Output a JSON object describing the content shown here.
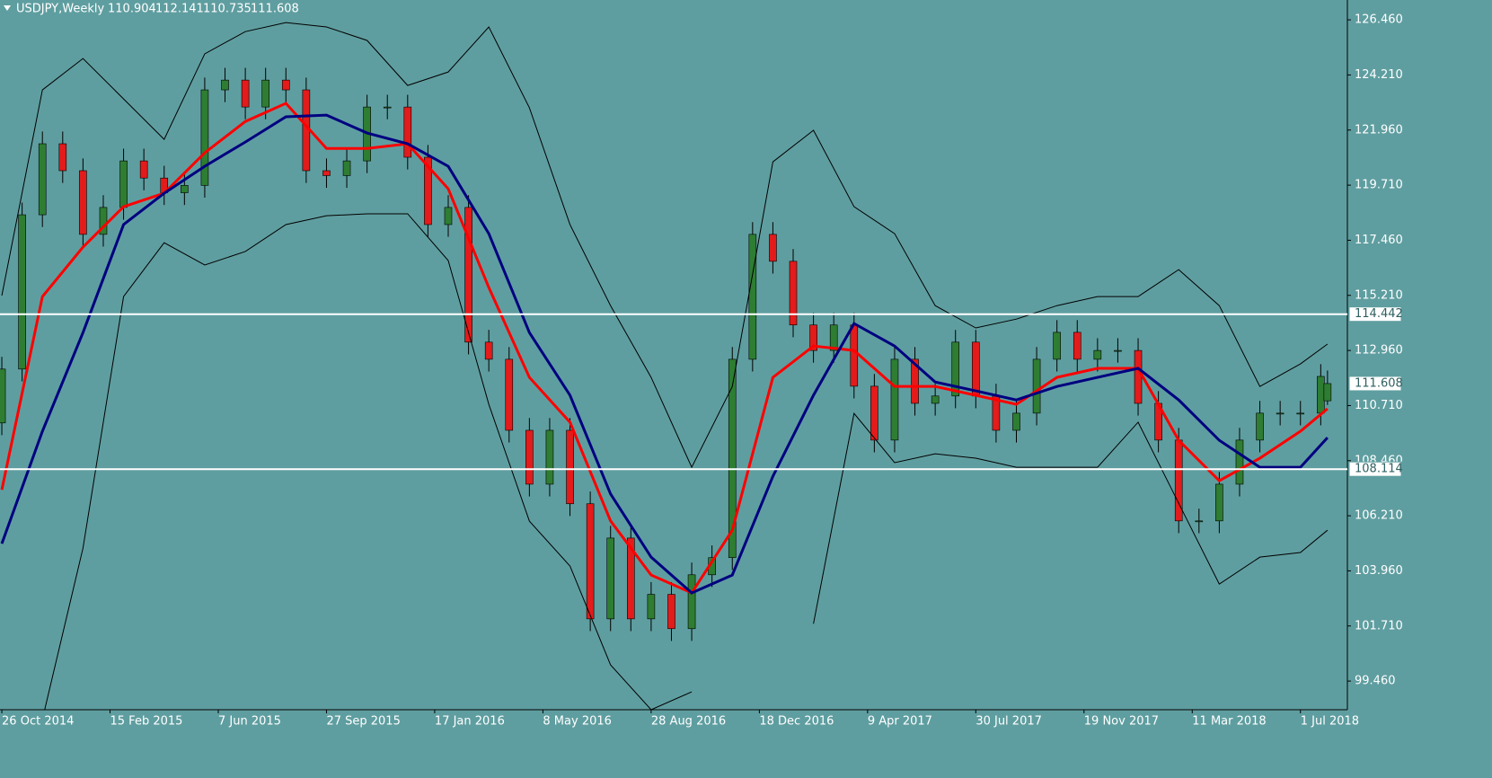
{
  "chart_data": {
    "type": "candlestick",
    "title": "USDJPY,Weekly",
    "x": [
      0,
      3,
      6,
      9,
      12,
      15,
      18,
      21,
      24,
      27,
      30,
      33,
      36,
      39,
      42,
      45,
      48,
      51,
      54,
      57,
      60,
      63,
      66,
      69,
      72,
      75,
      78,
      81,
      84,
      87,
      90,
      93,
      96,
      99,
      102,
      105,
      108,
      111,
      114,
      117,
      120,
      123,
      126,
      129,
      132,
      135,
      138,
      141,
      144,
      147,
      150,
      153,
      156,
      159,
      162,
      165,
      168,
      171,
      174,
      177,
      180,
      183,
      186,
      189,
      192,
      195,
      196
    ],
    "open": [
      110.0,
      112.2,
      118.5,
      121.4,
      120.3,
      117.7,
      118.8,
      120.7,
      120.0,
      119.4,
      119.7,
      123.6,
      124.0,
      122.9,
      124.0,
      123.6,
      120.3,
      120.1,
      120.7,
      122.9,
      122.9,
      120.85,
      118.1,
      118.8,
      113.3,
      112.6,
      109.7,
      107.5,
      109.7,
      106.7,
      102.0,
      105.3,
      102.0,
      103.0,
      101.6,
      103.8,
      104.5,
      112.6,
      117.7,
      116.6,
      114.0,
      112.96,
      114.0,
      111.5,
      109.3,
      112.6,
      110.8,
      111.1,
      113.3,
      111.1,
      109.7,
      110.4,
      112.6,
      113.7,
      112.6,
      112.96,
      112.96,
      110.8,
      109.3,
      106.0,
      106.0,
      107.5,
      109.3,
      110.4,
      110.4,
      110.4,
      110.904
    ],
    "high": [
      112.7,
      119.0,
      121.9,
      121.9,
      120.8,
      119.3,
      121.2,
      121.2,
      120.5,
      120.2,
      124.1,
      124.5,
      124.5,
      124.5,
      124.5,
      124.1,
      120.8,
      121.2,
      123.4,
      123.4,
      123.4,
      121.35,
      119.3,
      119.3,
      113.8,
      113.1,
      110.2,
      110.2,
      110.2,
      107.2,
      105.8,
      105.8,
      103.5,
      103.5,
      104.3,
      105.0,
      113.1,
      118.2,
      118.2,
      117.1,
      114.5,
      114.5,
      114.5,
      112.0,
      113.1,
      113.1,
      111.6,
      113.8,
      113.8,
      111.6,
      110.9,
      113.1,
      114.2,
      114.2,
      113.46,
      113.46,
      113.46,
      111.3,
      109.8,
      106.5,
      108.0,
      109.8,
      110.9,
      110.9,
      110.9,
      112.4,
      112.141
    ],
    "low": [
      109.5,
      111.7,
      118.0,
      119.8,
      117.2,
      117.2,
      118.3,
      119.5,
      118.9,
      118.9,
      119.2,
      123.1,
      122.4,
      122.4,
      123.1,
      119.8,
      119.6,
      119.6,
      120.2,
      122.4,
      120.35,
      117.6,
      117.6,
      112.8,
      112.1,
      109.2,
      107.0,
      107.0,
      106.2,
      101.5,
      101.5,
      101.5,
      101.5,
      101.1,
      101.1,
      103.3,
      104.0,
      112.1,
      116.1,
      113.5,
      112.46,
      112.46,
      111.0,
      108.8,
      108.8,
      110.3,
      110.3,
      110.6,
      110.6,
      109.2,
      109.2,
      109.9,
      112.1,
      112.1,
      112.1,
      112.46,
      110.3,
      108.8,
      105.5,
      105.5,
      105.5,
      107.0,
      108.8,
      109.9,
      109.9,
      109.9,
      110.735
    ],
    "close": [
      112.2,
      118.5,
      121.4,
      120.3,
      117.7,
      118.8,
      120.7,
      120.0,
      119.4,
      119.7,
      123.6,
      124.0,
      122.9,
      124.0,
      123.6,
      120.3,
      120.1,
      120.7,
      122.9,
      122.9,
      120.85,
      118.1,
      118.8,
      113.3,
      112.6,
      109.7,
      107.5,
      109.7,
      106.7,
      102.0,
      105.3,
      102.0,
      103.0,
      101.6,
      103.8,
      104.5,
      112.6,
      117.7,
      116.6,
      114.0,
      112.96,
      114.0,
      111.5,
      109.3,
      112.6,
      110.8,
      111.1,
      113.3,
      111.1,
      109.7,
      110.4,
      112.6,
      113.7,
      112.6,
      112.96,
      112.96,
      110.8,
      109.3,
      106.0,
      106.0,
      107.5,
      109.3,
      110.4,
      110.4,
      110.4,
      111.9,
      111.608
    ],
    "up_color": "#2e7d32",
    "down_color": "#e31b1b",
    "overlay_x": [
      0,
      6,
      12,
      18,
      24,
      30,
      36,
      42,
      48,
      54,
      60,
      66,
      72,
      78,
      84,
      90,
      96,
      102,
      108,
      114,
      120,
      126,
      132,
      138,
      144,
      150,
      156,
      162,
      168,
      174,
      180,
      186,
      192,
      196
    ],
    "overlays": [
      {
        "color": "#ff0000",
        "width": 3,
        "values": [
          107.27,
          115.16,
          117.18,
          118.83,
          119.38,
          121.03,
          122.31,
          123.05,
          121.21,
          121.21,
          121.4,
          119.56,
          115.53,
          111.86,
          110.03,
          106.0,
          103.79,
          103.06,
          105.62,
          111.86,
          113.14,
          112.96,
          111.49,
          111.49,
          111.13,
          110.76,
          111.86,
          112.23,
          112.23,
          109.29,
          107.64,
          108.56,
          109.66,
          110.58
        ]
      },
      {
        "color": "#000080",
        "width": 3,
        "values": [
          105.07,
          109.66,
          113.69,
          118.1,
          119.38,
          120.48,
          121.47,
          122.5,
          122.57,
          121.84,
          121.4,
          120.48,
          117.73,
          113.69,
          111.13,
          107.1,
          104.52,
          103.06,
          103.79,
          107.82,
          111.13,
          114.06,
          113.14,
          111.67,
          111.31,
          110.94,
          111.49,
          111.86,
          112.23,
          110.94,
          109.29,
          108.19,
          108.19,
          109.4
        ]
      },
      {
        "color": "#000000",
        "width": 1,
        "values": [
          115.2,
          123.6,
          124.88,
          123.23,
          121.58,
          125.07,
          125.98,
          126.35,
          126.17,
          125.62,
          123.78,
          124.33,
          126.17,
          122.87,
          118.1,
          114.79,
          111.86,
          108.19,
          111.49,
          120.66,
          121.95,
          118.83,
          117.73,
          114.79,
          113.88,
          114.24,
          114.79,
          115.16,
          115.16,
          116.26,
          114.79,
          111.49,
          112.41,
          113.22
        ]
      },
      {
        "color": "#000000",
        "width": 1,
        "values": [
          null,
          97.9,
          104.89,
          115.16,
          117.36,
          116.45,
          117.0,
          118.1,
          118.46,
          118.54,
          118.54,
          116.63,
          110.76,
          105.99,
          104.16,
          100.12,
          98.29,
          99.02,
          null,
          null,
          101.8,
          110.39,
          108.38,
          108.74,
          108.56,
          108.19,
          108.19,
          108.19,
          110.03,
          106.72,
          103.42,
          104.52,
          104.71,
          105.62
        ]
      }
    ],
    "hlines": [
      {
        "value": 114.442,
        "color": "#ffffff"
      },
      {
        "value": 108.114,
        "color": "#ffffff"
      }
    ],
    "xlim": [
      -0.27,
      198.94
    ],
    "ylim": [
      98.29,
      127.27
    ],
    "xticks": [
      {
        "value": 0,
        "label": "26 Oct 2014"
      },
      {
        "value": 16,
        "label": "15 Feb 2015"
      },
      {
        "value": 32,
        "label": "7 Jun 2015"
      },
      {
        "value": 48,
        "label": "27 Sep 2015"
      },
      {
        "value": 64,
        "label": "17 Jan 2016"
      },
      {
        "value": 80,
        "label": "8 May 2016"
      },
      {
        "value": 96,
        "label": "28 Aug 2016"
      },
      {
        "value": 112,
        "label": "18 Dec 2016"
      },
      {
        "value": 128,
        "label": "9 Apr 2017"
      },
      {
        "value": 144,
        "label": "30 Jul 2017"
      },
      {
        "value": 160,
        "label": "19 Nov 2017"
      },
      {
        "value": 176,
        "label": "11 Mar 2018"
      },
      {
        "value": 192,
        "label": "1 Jul 2018"
      }
    ],
    "yticks": [
      {
        "value": 126.46,
        "label": "126.460"
      },
      {
        "value": 124.21,
        "label": "124.210"
      },
      {
        "value": 121.96,
        "label": "121.960"
      },
      {
        "value": 119.71,
        "label": "119.710"
      },
      {
        "value": 117.46,
        "label": "117.460"
      },
      {
        "value": 115.21,
        "label": "115.210"
      },
      {
        "value": 112.96,
        "label": "112.960"
      },
      {
        "value": 110.71,
        "label": "110.710"
      },
      {
        "value": 108.46,
        "label": "108.460"
      },
      {
        "value": 106.21,
        "label": "106.210"
      },
      {
        "value": 103.96,
        "label": "103.960"
      },
      {
        "value": 101.71,
        "label": "101.710"
      },
      {
        "value": 99.46,
        "label": "99.460"
      }
    ]
  }
}
